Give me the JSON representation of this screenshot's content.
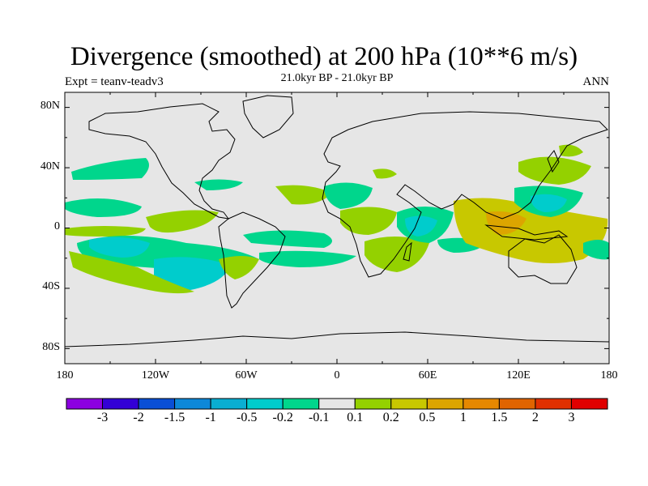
{
  "title": "Divergence (smoothed) at 200 hPa (10**6 m/s)",
  "subtitle": "21.0kyr BP - 21.0kyr BP",
  "experiment": "Expt = teanv-teadv3",
  "season": "ANN",
  "lat_labels": [
    "80N",
    "40N",
    "0",
    "40S",
    "80S"
  ],
  "lon_labels": [
    "180",
    "120W",
    "60W",
    "0",
    "60E",
    "120E",
    "180"
  ],
  "colorbar": {
    "colors": [
      "#8c00e0",
      "#3300d6",
      "#0a4fd6",
      "#0d88d9",
      "#0aaed2",
      "#00cccc",
      "#00d68c",
      "#e6e6e6",
      "#94d100",
      "#c8c800",
      "#dca500",
      "#e68800",
      "#e06400",
      "#e03000",
      "#e00000"
    ],
    "labels": [
      "-3",
      "-2",
      "-1.5",
      "-1",
      "-0.5",
      "-0.2",
      "-0.1",
      "0.1",
      "0.2",
      "0.5",
      "1",
      "1.5",
      "2",
      "3"
    ]
  },
  "field_colors": {
    "background": "#e6e6e6",
    "weak_divergent": "#94d100",
    "moderate_divergent": "#c8c800",
    "strong_divergent": "#dca500",
    "weak_convergent": "#00d68c",
    "moderate_convergent": "#00cccc"
  }
}
